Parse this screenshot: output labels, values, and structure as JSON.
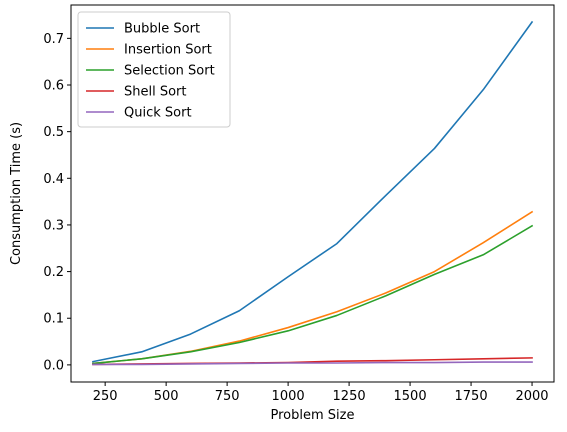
{
  "chart_data": {
    "type": "line",
    "title": "",
    "xlabel": "Problem Size",
    "ylabel": "Consumption Time (s)",
    "xlim": [
      110,
      2090
    ],
    "ylim": [
      -0.0367,
      0.7715
    ],
    "xticks": [
      250,
      500,
      750,
      1000,
      1250,
      1500,
      1750,
      2000
    ],
    "yticks": [
      0.0,
      0.1,
      0.2,
      0.3,
      0.4,
      0.5,
      0.6,
      0.7
    ],
    "grid": false,
    "legend_position": "top-left",
    "x": [
      200,
      400,
      600,
      800,
      1000,
      1200,
      1400,
      1600,
      1800,
      2000
    ],
    "series": [
      {
        "name": "Bubble Sort",
        "color": "#1f77b4",
        "values": [
          0.007,
          0.028,
          0.066,
          0.116,
          0.189,
          0.26,
          0.363,
          0.464,
          0.59,
          0.735
        ]
      },
      {
        "name": "Insertion Sort",
        "color": "#ff7f0e",
        "values": [
          0.003,
          0.013,
          0.029,
          0.051,
          0.08,
          0.114,
          0.154,
          0.2,
          0.262,
          0.328
        ]
      },
      {
        "name": "Selection Sort",
        "color": "#2ca02c",
        "values": [
          0.003,
          0.013,
          0.028,
          0.048,
          0.073,
          0.106,
          0.148,
          0.194,
          0.236,
          0.298
        ]
      },
      {
        "name": "Shell Sort",
        "color": "#d62728",
        "values": [
          0.001,
          0.002,
          0.003,
          0.004,
          0.005,
          0.008,
          0.009,
          0.011,
          0.013,
          0.015
        ]
      },
      {
        "name": "Quick Sort",
        "color": "#9467bd",
        "values": [
          0.001,
          0.001,
          0.002,
          0.003,
          0.004,
          0.004,
          0.005,
          0.005,
          0.006,
          0.006
        ]
      }
    ]
  }
}
